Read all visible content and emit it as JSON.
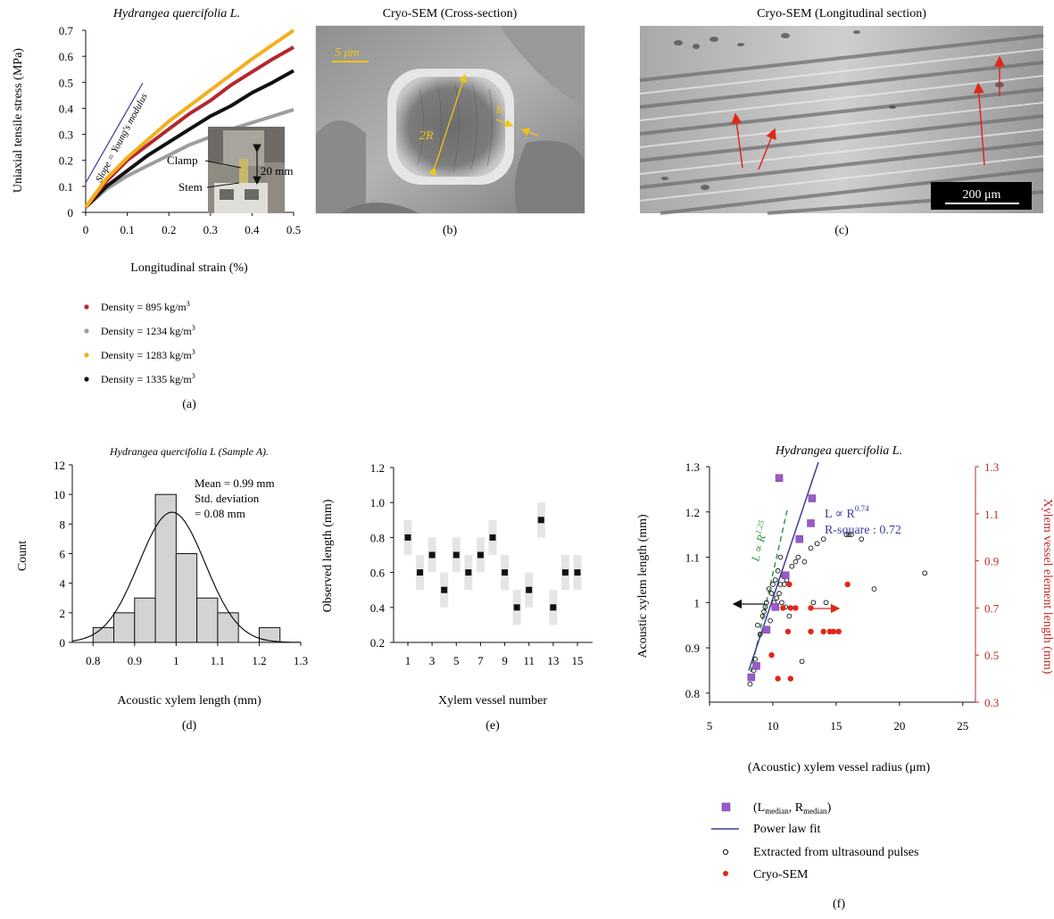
{
  "colors": {
    "red": "#b5262f",
    "gray": "#9e9e9e",
    "yellow": "#f2b01e",
    "black": "#111111",
    "blue": "#3c3c9a",
    "green": "#2a9a45",
    "purple": "#9a5ac8",
    "sem_red": "#e02818",
    "axis_red": "#c0282a",
    "annot_yellow": "#f2c516"
  },
  "panel_a": {
    "title": "Hydrangea quercifolia L.",
    "ylabel": "Uniaxial tensile stress (MPa)",
    "xlabel": "Longitudinal strain (%)",
    "x_ticks": [
      "0",
      "0.1",
      "0.2",
      "0.3",
      "0.4",
      "0.5"
    ],
    "y_ticks": [
      "0",
      "0.1",
      "0.2",
      "0.3",
      "0.4",
      "0.5",
      "0.6",
      "0.7"
    ],
    "slope_label": "Slope = Young's modulus",
    "inset_labels": {
      "clamp": "Clamp",
      "stem": "Stem",
      "length": "20 mm"
    },
    "legend": [
      {
        "label": "Density = 895 kg/m",
        "sup": "3",
        "color": "#b5262f"
      },
      {
        "label": "Density = 1234 kg/m",
        "sup": "3",
        "color": "#9e9e9e"
      },
      {
        "label": "Density = 1283 kg/m",
        "sup": "3",
        "color": "#f2b01e"
      },
      {
        "label": "Density = 1335 kg/m",
        "sup": "3",
        "color": "#111111"
      }
    ],
    "caption": "(a)"
  },
  "panel_b": {
    "title": "Cryo-SEM (Cross-section)",
    "scale_label": "5 μm",
    "diameter_label": "2R",
    "thickness_label": "h",
    "caption": "(b)"
  },
  "panel_c": {
    "title": "Cryo-SEM (Longitudinal section)",
    "scale_label": "200 μm",
    "caption": "(c)"
  },
  "panel_d": {
    "title": "Hydrangea quercifolia L (Sample A).",
    "ylabel": "Count",
    "xlabel": "Acoustic xylem length (mm)",
    "x_ticks": [
      "0.8",
      "0.9",
      "1",
      "1.1",
      "1.2",
      "1.3"
    ],
    "y_ticks": [
      "0",
      "2",
      "4",
      "6",
      "8",
      "10",
      "12"
    ],
    "stats": [
      "Mean = 0.99 mm",
      "Std. deviation",
      "= 0.08 mm"
    ],
    "caption": "(d)"
  },
  "panel_e": {
    "ylabel": "Observed length (mm)",
    "xlabel": "Xylem vessel number",
    "x_ticks": [
      "1",
      "3",
      "5",
      "7",
      "9",
      "11",
      "13",
      "15"
    ],
    "y_ticks": [
      "0.2",
      "0.4",
      "0.6",
      "0.8",
      "1.0",
      "1.2"
    ],
    "caption": "(e)"
  },
  "panel_f": {
    "title": "Hydrangea quercifolia L.",
    "ylabel_left": "Acoustic xylem length (mm)",
    "ylabel_right": "Xylem vessel element length (mm)",
    "xlabel": "(Acoustic) xylem vessel radius (μm)",
    "x_ticks": [
      "5",
      "10",
      "15",
      "20",
      "25"
    ],
    "y_ticks_left": [
      "0.8",
      "0.9",
      "1",
      "1.1",
      "1.2",
      "1.3"
    ],
    "y_ticks_right": [
      "0.3",
      "0.5",
      "0.7",
      "0.9",
      "1.1",
      "1.3"
    ],
    "fit_label": "L ∝ R",
    "fit_exp": "0.74",
    "rsq_label": "R-square : 0.72",
    "green_label": "L ∝ R",
    "green_exp": "1.25",
    "legend": [
      {
        "label": "(L",
        "sub1": "median",
        "mid": ", R",
        "sub2": "median",
        "end": ")"
      },
      {
        "label": "Power law fit"
      },
      {
        "label": "Extracted from ultrasound pulses"
      },
      {
        "label": "Cryo-SEM"
      }
    ],
    "caption": "(f)"
  },
  "chart_data": [
    {
      "type": "line",
      "title": "Hydrangea quercifolia L.",
      "xlabel": "Longitudinal strain (%)",
      "ylabel": "Uniaxial tensile stress (MPa)",
      "xlim": [
        0,
        0.5
      ],
      "ylim": [
        0,
        0.7
      ],
      "x": [
        0,
        0.05,
        0.1,
        0.15,
        0.2,
        0.25,
        0.3,
        0.35,
        0.4,
        0.45,
        0.5
      ],
      "series": [
        {
          "name": "Density = 895 kg/m3",
          "values": [
            0.02,
            0.12,
            0.2,
            0.26,
            0.32,
            0.38,
            0.43,
            0.49,
            0.54,
            0.59,
            0.635
          ]
        },
        {
          "name": "Density = 1234 kg/m3",
          "values": [
            0.02,
            0.09,
            0.14,
            0.18,
            0.22,
            0.26,
            0.29,
            0.32,
            0.345,
            0.37,
            0.395
          ]
        },
        {
          "name": "Density = 1283 kg/m3",
          "values": [
            0.02,
            0.13,
            0.21,
            0.28,
            0.35,
            0.41,
            0.47,
            0.53,
            0.59,
            0.645,
            0.7
          ]
        },
        {
          "name": "Density = 1335 kg/m3",
          "values": [
            0.02,
            0.1,
            0.16,
            0.22,
            0.27,
            0.32,
            0.37,
            0.41,
            0.46,
            0.5,
            0.545
          ]
        }
      ]
    },
    {
      "type": "bar",
      "title": "Hydrangea quercifolia L (Sample A).",
      "xlabel": "Acoustic xylem length (mm)",
      "ylabel": "Count",
      "xlim": [
        0.75,
        1.3
      ],
      "ylim": [
        0,
        12
      ],
      "bin_edges": [
        0.8,
        0.85,
        0.9,
        0.95,
        1.0,
        1.05,
        1.1,
        1.15,
        1.2,
        1.25
      ],
      "values": [
        1,
        2,
        3,
        10,
        6,
        3,
        2,
        0,
        1
      ],
      "fit": {
        "mean": 0.99,
        "std": 0.08,
        "peak": 8.8
      }
    },
    {
      "type": "scatter",
      "xlabel": "Xylem vessel number",
      "ylabel": "Observed length (mm)",
      "xlim": [
        0,
        16
      ],
      "ylim": [
        0.2,
        1.2
      ],
      "x": [
        1,
        2,
        3,
        4,
        5,
        6,
        7,
        8,
        9,
        10,
        11,
        12,
        13,
        14,
        15
      ],
      "values": [
        0.8,
        0.6,
        0.7,
        0.5,
        0.7,
        0.6,
        0.7,
        0.8,
        0.6,
        0.4,
        0.5,
        0.9,
        0.4,
        0.6,
        0.6
      ],
      "uncertainty": 0.1
    },
    {
      "type": "scatter",
      "title": "Hydrangea quercifolia L.",
      "xlabel": "(Acoustic) xylem vessel radius (μm)",
      "ylabel": "Acoustic xylem length (mm)",
      "ylabel_right": "Xylem vessel element length (mm)",
      "xlim": [
        5,
        26
      ],
      "ylim": [
        0.78,
        1.3
      ],
      "ylim_right": [
        0.3,
        1.3
      ],
      "series": [
        {
          "name": "(Lmedian, Rmedian)",
          "points": [
            [
              8.3,
              0.835
            ],
            [
              8.7,
              0.86
            ],
            [
              9.5,
              0.94
            ],
            [
              10.2,
              0.99
            ],
            [
              10.5,
              1.275
            ],
            [
              11.0,
              1.06
            ],
            [
              12.1,
              1.14
            ],
            [
              13.0,
              1.175
            ],
            [
              13.1,
              1.23
            ]
          ]
        },
        {
          "name": "Power law fit",
          "points": [
            [
              8.1,
              0.85
            ],
            [
              13.6,
              1.31
            ]
          ]
        },
        {
          "name": "Extracted from ultrasound pulses",
          "points": [
            [
              8.2,
              0.82
            ],
            [
              8.5,
              0.85
            ],
            [
              8.6,
              0.875
            ],
            [
              8.8,
              0.95
            ],
            [
              9.0,
              0.93
            ],
            [
              9.2,
              0.97
            ],
            [
              9.3,
              0.98
            ],
            [
              9.4,
              0.99
            ],
            [
              9.5,
              1.0
            ],
            [
              9.7,
              1.03
            ],
            [
              9.8,
              0.96
            ],
            [
              9.9,
              1.02
            ],
            [
              10.0,
              1.04
            ],
            [
              10.1,
              1.0
            ],
            [
              10.2,
              1.05
            ],
            [
              10.3,
              1.01
            ],
            [
              10.4,
              1.07
            ],
            [
              10.5,
              1.02
            ],
            [
              10.6,
              1.1
            ],
            [
              10.7,
              1.0
            ],
            [
              10.8,
              1.06
            ],
            [
              10.9,
              1.04
            ],
            [
              11.0,
              0.99
            ],
            [
              11.1,
              1.05
            ],
            [
              11.3,
              0.97
            ],
            [
              11.5,
              1.08
            ],
            [
              11.8,
              1.09
            ],
            [
              12.0,
              1.1
            ],
            [
              12.3,
              0.87
            ],
            [
              12.5,
              1.09
            ],
            [
              13.0,
              1.12
            ],
            [
              13.2,
              1.0
            ],
            [
              13.5,
              1.13
            ],
            [
              14.0,
              1.14
            ],
            [
              14.2,
              1.0
            ],
            [
              15.8,
              1.15
            ],
            [
              16.0,
              1.15
            ],
            [
              16.2,
              1.15
            ],
            [
              17.0,
              1.14
            ],
            [
              18.0,
              1.03
            ],
            [
              22.0,
              1.065
            ],
            [
              10.6,
              1.04
            ]
          ]
        },
        {
          "name": "Cryo-SEM",
          "axis": "right",
          "points": [
            [
              9.9,
              0.5
            ],
            [
              10.4,
              0.4
            ],
            [
              10.8,
              0.7
            ],
            [
              11.2,
              0.6
            ],
            [
              11.3,
              0.8
            ],
            [
              11.4,
              0.4
            ],
            [
              11.4,
              0.7
            ],
            [
              11.8,
              0.7
            ],
            [
              13.0,
              0.6
            ],
            [
              13.0,
              0.7
            ],
            [
              14.0,
              0.6
            ],
            [
              14.5,
              0.6
            ],
            [
              14.8,
              0.6
            ],
            [
              15.2,
              0.6
            ],
            [
              15.9,
              0.8
            ]
          ]
        }
      ]
    }
  ]
}
